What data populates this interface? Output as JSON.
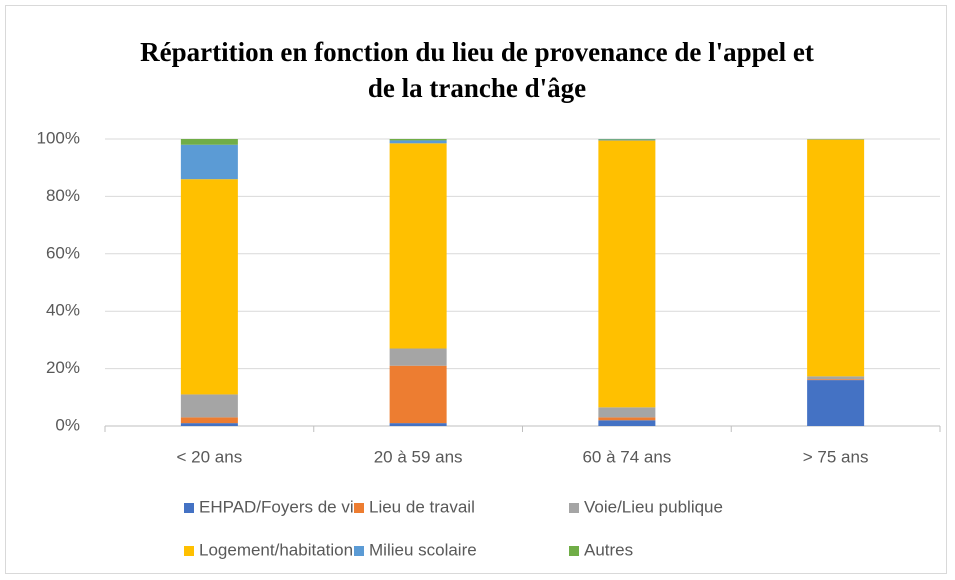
{
  "chart_data": {
    "type": "stacked_bar",
    "title": "Répartition en fonction du lieu de provenance de l'appel et de la tranche d'âge",
    "categories": [
      "< 20 ans",
      "20 à 59 ans",
      "60 à 74 ans",
      "> 75 ans"
    ],
    "series": [
      {
        "name": "EHPAD/Foyers de vie",
        "color": "#4472c4",
        "values": [
          1,
          1,
          2,
          16
        ]
      },
      {
        "name": "Lieu de travail",
        "color": "#ed7d31",
        "values": [
          2,
          20,
          1,
          0.3
        ]
      },
      {
        "name": "Voie/Lieu publique",
        "color": "#a5a5a5",
        "values": [
          8,
          6,
          3.5,
          1
        ]
      },
      {
        "name": "Logement/habitation",
        "color": "#ffc000",
        "values": [
          75,
          71.5,
          93,
          82.5
        ]
      },
      {
        "name": "Milieu scolaire",
        "color": "#5b9bd5",
        "values": [
          12,
          1,
          0.3,
          0.1
        ]
      },
      {
        "name": "Autres",
        "color": "#70ad47",
        "values": [
          2,
          0.5,
          0.2,
          0.1
        ]
      }
    ],
    "ylim": [
      0,
      100
    ],
    "yticks": [
      {
        "value": 0,
        "label": "0%"
      },
      {
        "value": 20,
        "label": "20%"
      },
      {
        "value": 40,
        "label": "40%"
      },
      {
        "value": 60,
        "label": "60%"
      },
      {
        "value": 80,
        "label": "80%"
      },
      {
        "value": 100,
        "label": "100%"
      }
    ],
    "grid": true,
    "legend": "bottom"
  }
}
